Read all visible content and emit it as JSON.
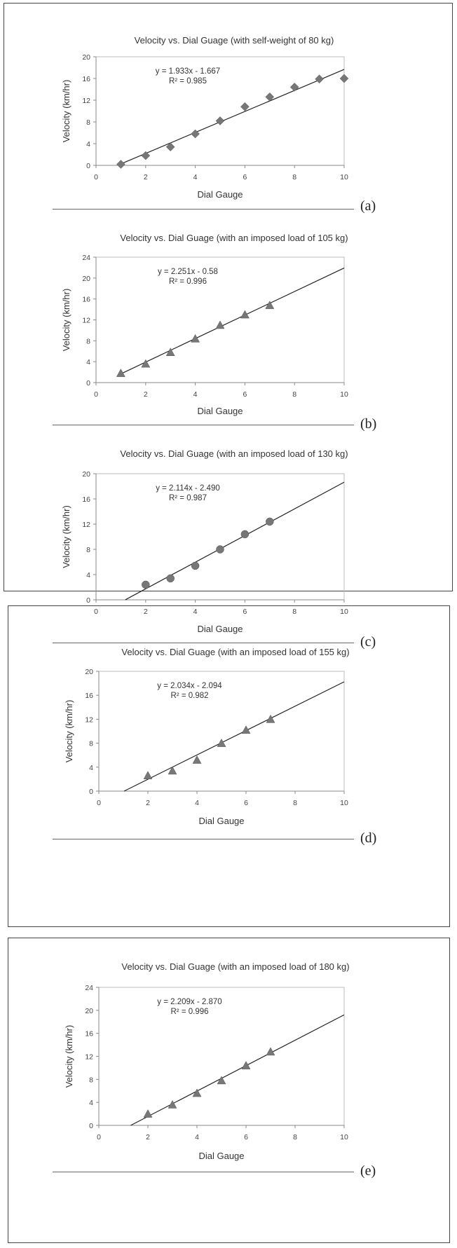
{
  "chart_data": [
    {
      "type": "scatter",
      "panel_label": "(a)",
      "title": "Velocity vs. Dial Guage (with self-weight of 80 kg)",
      "xlabel": "Dial Gauge",
      "ylabel": "Velocity (km/hr)",
      "xlim": [
        0,
        10
      ],
      "ylim": [
        0,
        20
      ],
      "xticks": [
        "0",
        "2",
        "4",
        "6",
        "8",
        "10"
      ],
      "yticks": [
        "0",
        "4",
        "8",
        "12",
        "16",
        "20"
      ],
      "marker": "diamond",
      "points": {
        "x": [
          1,
          2,
          3,
          4,
          5,
          6,
          7,
          8,
          9,
          10
        ],
        "y": [
          0.2,
          1.8,
          3.4,
          5.8,
          8.2,
          10.8,
          12.6,
          14.4,
          15.9,
          16.0
        ]
      },
      "trendline": {
        "slope": 1.933,
        "intercept": -1.667,
        "x_range": [
          1,
          10
        ]
      },
      "equation": "y = 1.933x - 1.667",
      "r2": "R² = 0.985"
    },
    {
      "type": "scatter",
      "panel_label": "(b)",
      "title": "Velocity vs. Dial Guage (with an imposed load of 105 kg)",
      "xlabel": "Dial Gauge",
      "ylabel": "Velocity (km/hr)",
      "xlim": [
        0,
        10
      ],
      "ylim": [
        0,
        24
      ],
      "xticks": [
        "0",
        "2",
        "4",
        "6",
        "8",
        "10"
      ],
      "yticks": [
        "0",
        "4",
        "8",
        "12",
        "16",
        "20",
        "24"
      ],
      "marker": "triangle",
      "points": {
        "x": [
          1,
          2,
          3,
          4,
          5,
          6,
          7
        ],
        "y": [
          1.8,
          3.6,
          5.8,
          8.4,
          11.0,
          13.0,
          14.8
        ]
      },
      "trendline": {
        "slope": 2.251,
        "intercept": -0.58,
        "x_range": [
          1,
          10
        ]
      },
      "equation": "y = 2.251x - 0.58",
      "r2": "R² = 0.996"
    },
    {
      "type": "scatter",
      "panel_label": "(c)",
      "title": "Velocity vs. Dial Guage (with an imposed load of 130 kg)",
      "xlabel": "Dial Gauge",
      "ylabel": "Velocity (km/hr)",
      "xlim": [
        0,
        10
      ],
      "ylim": [
        0,
        20
      ],
      "xticks": [
        "0",
        "2",
        "4",
        "6",
        "8",
        "10"
      ],
      "yticks": [
        "0",
        "4",
        "8",
        "12",
        "16",
        "20"
      ],
      "marker": "circle",
      "points": {
        "x": [
          2,
          3,
          4,
          5,
          6,
          7
        ],
        "y": [
          2.4,
          3.4,
          5.4,
          8.0,
          10.4,
          12.4
        ]
      },
      "trendline": {
        "slope": 2.114,
        "intercept": -2.49,
        "x_range": [
          1.18,
          10
        ]
      },
      "equation": "y = 2.114x - 2.490",
      "r2": "R² = 0.987"
    },
    {
      "type": "scatter",
      "panel_label": "(d)",
      "title": "Velocity vs. Dial Guage (with an imposed load of 155 kg)",
      "xlabel": "Dial Gauge",
      "ylabel": "Velocity (km/hr)",
      "xlim": [
        0,
        10
      ],
      "ylim": [
        0,
        20
      ],
      "xticks": [
        "0",
        "2",
        "4",
        "6",
        "8",
        "10"
      ],
      "yticks": [
        "0",
        "4",
        "8",
        "12",
        "16",
        "20"
      ],
      "marker": "triangle",
      "points": {
        "x": [
          2,
          3,
          4,
          5,
          6,
          7
        ],
        "y": [
          2.6,
          3.4,
          5.2,
          8.0,
          10.2,
          12.0
        ]
      },
      "trendline": {
        "slope": 2.034,
        "intercept": -2.094,
        "x_range": [
          1.03,
          10
        ]
      },
      "equation": "y = 2.034x - 2.094",
      "r2": "R² = 0.982"
    },
    {
      "type": "scatter",
      "panel_label": "(e)",
      "title": "Velocity vs. Dial Guage (with an imposed load of 180 kg)",
      "xlabel": "Dial Gauge",
      "ylabel": "Velocity (km/hr)",
      "xlim": [
        0,
        10
      ],
      "ylim": [
        0,
        24
      ],
      "xticks": [
        "0",
        "2",
        "4",
        "6",
        "8",
        "10"
      ],
      "yticks": [
        "0",
        "4",
        "8",
        "12",
        "16",
        "20",
        "24"
      ],
      "marker": "triangle",
      "points": {
        "x": [
          2,
          3,
          4,
          5,
          6,
          7
        ],
        "y": [
          2.0,
          3.6,
          5.6,
          7.8,
          10.4,
          12.8
        ]
      },
      "trendline": {
        "slope": 2.209,
        "intercept": -2.87,
        "x_range": [
          1.3,
          10
        ]
      },
      "equation": "y = 2.209x - 2.870",
      "r2": "R² = 0.996"
    }
  ],
  "colors": {
    "marker": "#777777",
    "trendline": "#222222",
    "axis": "#888888"
  }
}
